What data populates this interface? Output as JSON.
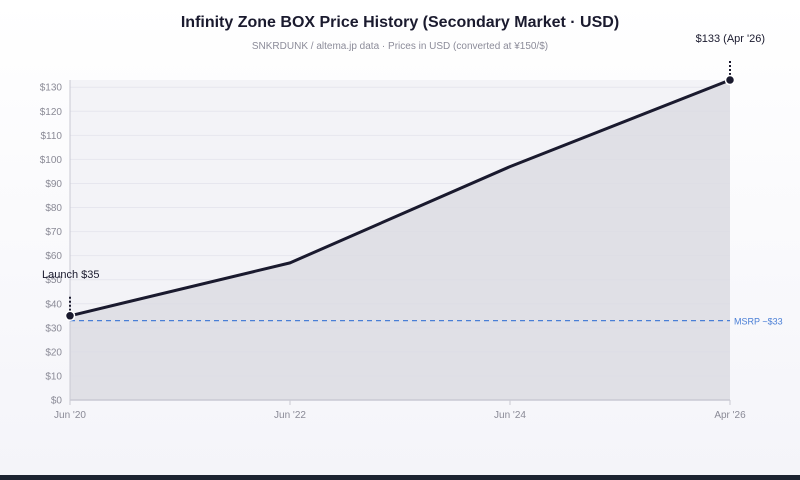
{
  "header": {
    "title": "Infinity Zone BOX Price History (Secondary Market · USD)",
    "subtitle": "SNKRDUNK / altema.jp data · Prices in USD (converted at ¥150/$)"
  },
  "colors": {
    "line": "#1a1a2e",
    "area": "#dcdce3",
    "msrp": "#4a7fd6",
    "grid": "#e6e6ee",
    "axis": "#c9c9d3",
    "tick": "#8a8a96"
  },
  "chart_data": {
    "type": "area",
    "title": "Infinity Zone BOX Price History (Secondary Market · USD)",
    "subtitle": "SNKRDUNK / altema.jp data · Prices in USD (converted at ¥150/$)",
    "xlabel": "",
    "ylabel": "",
    "x": [
      "Jun '20",
      "Jun '22",
      "Jun '24",
      "Apr '26"
    ],
    "x_ticks": [
      "Jun '20",
      "Jun '22",
      "Jun '24",
      "Apr '26"
    ],
    "series": [
      {
        "values": [
          35,
          57,
          97,
          133
        ]
      }
    ],
    "ylim": [
      0,
      130
    ],
    "y_ticks": [
      0,
      10,
      20,
      30,
      40,
      50,
      60,
      70,
      80,
      90,
      100,
      110,
      120,
      130
    ],
    "y_tick_labels": [
      "$0",
      "$10",
      "$20",
      "$30",
      "$40",
      "$50",
      "$60",
      "$70",
      "$80",
      "$90",
      "$100",
      "$110",
      "$120",
      "$130"
    ],
    "reference_line": {
      "value": 33,
      "label": "MSRP ~$33"
    },
    "annotations": [
      {
        "point": 0,
        "text": "Launch $35"
      },
      {
        "point": 3,
        "text": "$133 (Apr '26)"
      }
    ],
    "grid": true,
    "legend": "none"
  }
}
